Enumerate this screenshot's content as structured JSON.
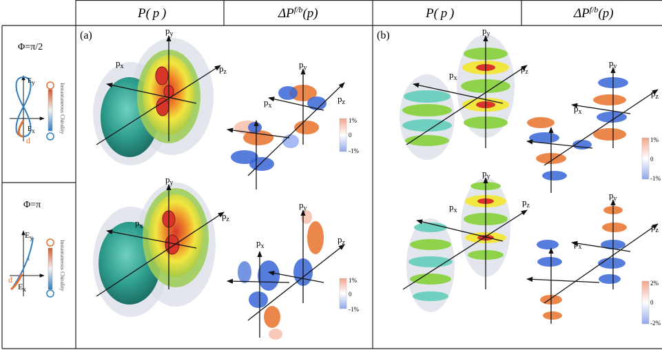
{
  "header": {
    "col1": "P( p )",
    "col2": "ΔP",
    "col2_sup": "f/b",
    "col2_arg": "(p)",
    "col3": "P( p )",
    "col4": "ΔP",
    "col4_sup": "f/b",
    "col4_arg": "(p)"
  },
  "rows": [
    {
      "phi": "Φ=π/2",
      "ex": "E",
      "ex_sub": "x",
      "ey": "E",
      "ey_sub": "y",
      "i_lbl": "i",
      "d_lbl": "d",
      "chirality": "Instantaneous Chirality"
    },
    {
      "phi": "Φ=π",
      "ex": "E",
      "ex_sub": "x",
      "ey": "E",
      "ey_sub": "y",
      "i_lbl": "i",
      "d_lbl": "d",
      "chirality": "Instantaneous Chirality"
    }
  ],
  "panels": {
    "a": "(a)",
    "b": "(b)"
  },
  "axes": {
    "px": "p",
    "px_sub": "x",
    "py": "p",
    "py_sub": "y",
    "pz": "p",
    "pz_sub": "z"
  },
  "colorbars": {
    "a_top": [
      "1%",
      "0",
      "-1%"
    ],
    "a_bot": [
      "1%",
      "0",
      "-1%"
    ],
    "b_top": [
      "1%",
      "0",
      "-1%"
    ],
    "b_bot": [
      "2%",
      "0",
      "-2%"
    ]
  },
  "colors": {
    "teal": "#2f9d8e",
    "yellow": "#f2e640",
    "red": "#d8362b",
    "orange": "#e8722a",
    "blue": "#3366cc",
    "grey": "#c9cdd8"
  }
}
